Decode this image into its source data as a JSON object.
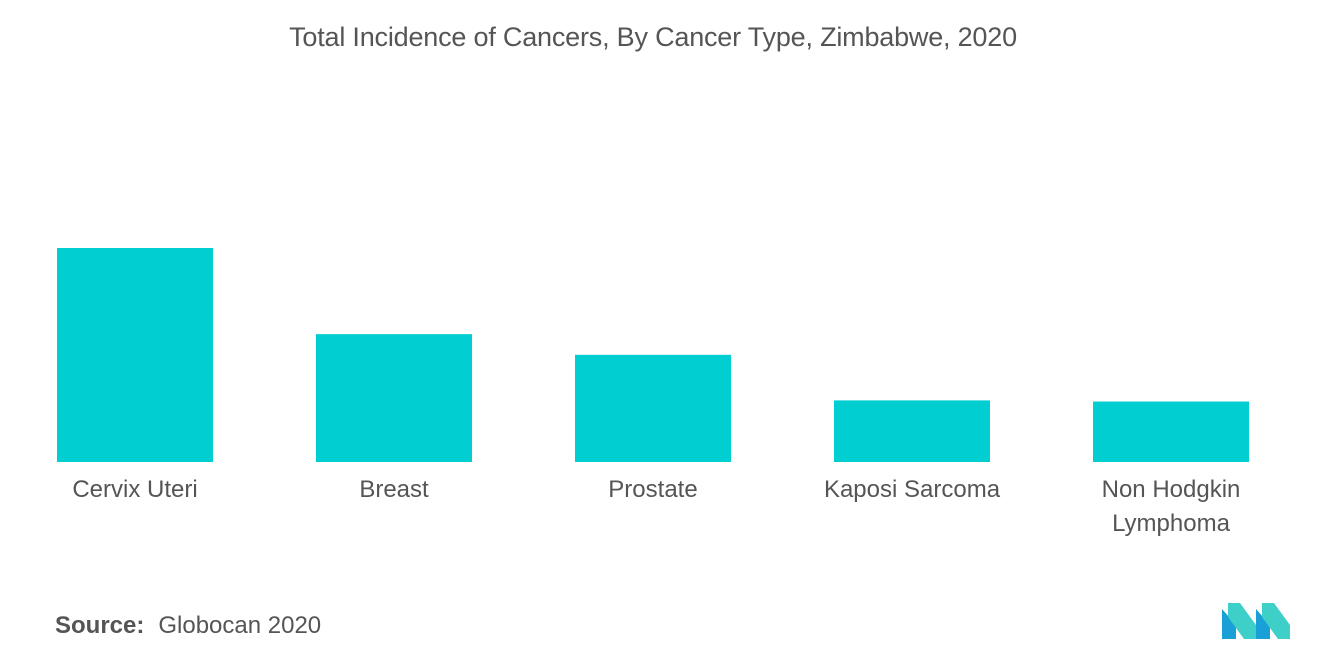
{
  "chart_data": {
    "type": "bar",
    "title": "Total Incidence of Cancers, By Cancer Type, Zimbabwe, 2020",
    "categories": [
      [
        "Cervix Uteri"
      ],
      [
        "Breast"
      ],
      [
        "Prostate"
      ],
      [
        "Kaposi Sarcoma"
      ],
      [
        "Non Hodgkin",
        "Lymphoma"
      ]
    ],
    "values": [
      3043,
      1818,
      1524,
      876,
      860
    ],
    "bar_color": "#00CED1",
    "xlabel": "",
    "ylabel": "",
    "grid": false,
    "legend": "none",
    "axis_visible": false
  },
  "source": {
    "label": "Source:",
    "text": "Globocan 2020"
  },
  "logo": {
    "icon": "mordor-intelligence-logo",
    "colors": [
      "#1a9fd6",
      "#3ed0c8"
    ]
  }
}
